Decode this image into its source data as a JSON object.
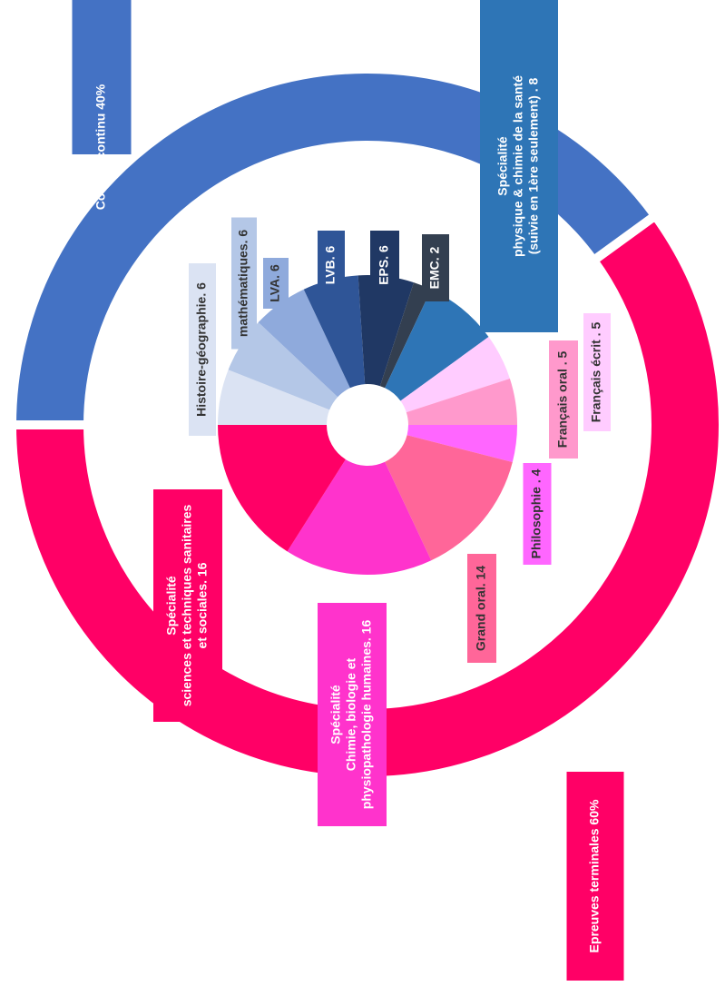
{
  "chart_data": {
    "type": "donut",
    "inner": {
      "labels": [
        [
          "Histoire-géographie. 6"
        ],
        [
          "mathématiques. 6"
        ],
        [
          "LVA. 6"
        ],
        [
          "LVB. 6"
        ],
        [
          "EPS. 6"
        ],
        [
          "EMC. 2"
        ],
        [
          "Spécialité",
          "physique & chimie de la santé",
          "(suivie en 1ère seulement) . 8"
        ],
        [
          "Français écrit . 5"
        ],
        [
          "Français oral . 5"
        ],
        [
          "Philosophie . 4"
        ],
        [
          "Grand oral. 14"
        ],
        [
          "Spécialité",
          "Chimie, biologie et",
          "physiopathologie humaines. 16"
        ],
        [
          "Spécialité",
          "sciences et techniques sanitaires",
          "et sociales. 16"
        ]
      ],
      "values": [
        6,
        6,
        6,
        6,
        6,
        2,
        8,
        5,
        5,
        4,
        14,
        16,
        16
      ],
      "colors": [
        "#dbe3f3",
        "#b4c7e7",
        "#8faadc",
        "#2f5597",
        "#203864",
        "#333f50",
        "#2e75b6",
        "#ffccff",
        "#ff99cc",
        "#ff66ff",
        "#ff6699",
        "#ff33cc",
        "#ff0066"
      ]
    },
    "outer": {
      "labels": [
        [
          "Contôle continu 40%"
        ],
        [
          "Epreuves terminales 60%"
        ]
      ],
      "values": [
        40,
        60
      ],
      "colors": [
        "#4472c4",
        "#ff0066"
      ]
    }
  }
}
